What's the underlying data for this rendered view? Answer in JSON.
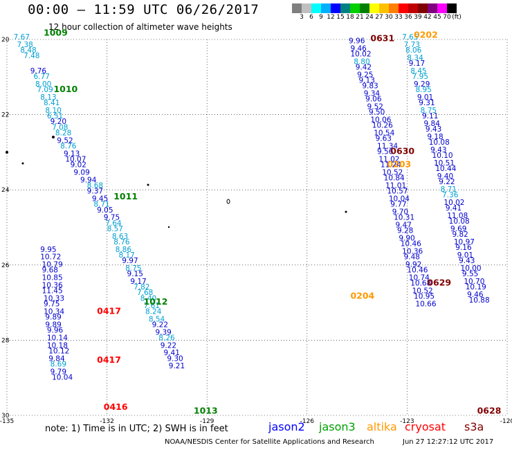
{
  "header": {
    "title": "00:00 – 11:59 UTC 06/26/2017",
    "subtitle": "12 hour collection of altimeter wave heights"
  },
  "colorbar": {
    "colors": [
      "#7f7f7f",
      "#c0c0c0",
      "#00ffff",
      "#00b0ff",
      "#0000ff",
      "#008080",
      "#00d000",
      "#008000",
      "#ffff00",
      "#ffc000",
      "#ff8000",
      "#ff0000",
      "#c00000",
      "#800000",
      "#800080",
      "#ff00ff",
      "#000000"
    ],
    "labels": [
      "3",
      "6",
      "9",
      "12",
      "15",
      "18",
      "21",
      "24",
      "27",
      "30",
      "33",
      "36",
      "39",
      "42",
      "45",
      "70",
      "(ft)"
    ]
  },
  "axes": {
    "lon_ticks": [
      "-135",
      "-132",
      "-129",
      "-126",
      "-123",
      "-120"
    ],
    "lat_ticks": [
      "20",
      "22",
      "24",
      "26",
      "28",
      "30"
    ],
    "lon_range": [
      -135,
      -120
    ],
    "lat_range": [
      20,
      30
    ]
  },
  "tracks": [
    {
      "label": "1009",
      "satellite": "jason3",
      "lon": -133.9,
      "lat": 19.9,
      "label_color": "#008000"
    },
    {
      "label": "1010",
      "satellite": "jason3",
      "lon": -133.6,
      "lat": 21.4,
      "label_color": "#008000"
    },
    {
      "label": "1011",
      "satellite": "jason3",
      "lon": -131.8,
      "lat": 24.25,
      "label_color": "#008000"
    },
    {
      "label": "1012",
      "satellite": "jason3",
      "lon": -130.9,
      "lat": 27.05,
      "label_color": "#008000"
    },
    {
      "label": "1013",
      "satellite": "jason3",
      "lon": -129.4,
      "lat": 29.95,
      "label_color": "#008000"
    },
    {
      "label": "0417",
      "satellite": "cryosat",
      "lon": -132.3,
      "lat": 27.3,
      "label_color": "#ff0000"
    },
    {
      "label": "0417",
      "satellite": "cryosat",
      "lon": -132.3,
      "lat": 28.6,
      "label_color": "#ff0000"
    },
    {
      "label": "0416",
      "satellite": "cryosat",
      "lon": -132.1,
      "lat": 29.85,
      "label_color": "#ff0000"
    },
    {
      "label": "0631",
      "satellite": "s3a",
      "lon": -124.1,
      "lat": 20.05,
      "label_color": "#800000"
    },
    {
      "label": "0202",
      "satellite": "altika",
      "lon": -122.8,
      "lat": 19.95,
      "label_color": "#ff9900"
    },
    {
      "label": "0630",
      "satellite": "s3a",
      "lon": -123.5,
      "lat": 23.05,
      "label_color": "#800000"
    },
    {
      "label": "0203",
      "satellite": "altika",
      "lon": -123.6,
      "lat": 23.4,
      "label_color": "#ff9900"
    },
    {
      "label": "0629",
      "satellite": "s3a",
      "lon": -122.4,
      "lat": 26.55,
      "label_color": "#800000"
    },
    {
      "label": "0204",
      "satellite": "altika",
      "lon": -124.7,
      "lat": 26.9,
      "label_color": "#ff9900"
    },
    {
      "label": "0628",
      "satellite": "s3a",
      "lon": -120.9,
      "lat": 29.95,
      "label_color": "#800000"
    }
  ],
  "points": [
    {
      "v": "7.67",
      "lon": -134.8,
      "lat": 20.0,
      "s": "jason3"
    },
    {
      "v": "7.38",
      "lon": -134.7,
      "lat": 20.2,
      "s": "jason3"
    },
    {
      "v": "8.48",
      "lon": -134.6,
      "lat": 20.35,
      "s": "jason3"
    },
    {
      "v": "7.48",
      "lon": -134.5,
      "lat": 20.5,
      "s": "jason3"
    },
    {
      "v": "9.76",
      "lon": -134.3,
      "lat": 20.9,
      "s": "jason2"
    },
    {
      "v": "6.77",
      "lon": -134.2,
      "lat": 21.05,
      "s": "jason3"
    },
    {
      "v": "8.00",
      "lon": -134.15,
      "lat": 21.25,
      "s": "jason3"
    },
    {
      "v": "7.09",
      "lon": -134.1,
      "lat": 21.4,
      "s": "jason3"
    },
    {
      "v": "8.13",
      "lon": -134.0,
      "lat": 21.6,
      "s": "jason3"
    },
    {
      "v": "8.41",
      "lon": -133.9,
      "lat": 21.75,
      "s": "jason3"
    },
    {
      "v": "8.10",
      "lon": -133.85,
      "lat": 21.95,
      "s": "jason3"
    },
    {
      "v": "6.51",
      "lon": -133.8,
      "lat": 22.1,
      "s": "jason3"
    },
    {
      "v": "9.20",
      "lon": -133.7,
      "lat": 22.25,
      "s": "jason2"
    },
    {
      "v": "7.08",
      "lon": -133.65,
      "lat": 22.4,
      "s": "jason3"
    },
    {
      "v": "8.28",
      "lon": -133.55,
      "lat": 22.55,
      "s": "jason3"
    },
    {
      "v": "9.52",
      "lon": -133.5,
      "lat": 22.75,
      "s": "jason2"
    },
    {
      "v": "8.76",
      "lon": -133.4,
      "lat": 22.9,
      "s": "jason3"
    },
    {
      "v": "9.13",
      "lon": -133.3,
      "lat": 23.1,
      "s": "jason2"
    },
    {
      "v": "10.07",
      "lon": -133.25,
      "lat": 23.25,
      "s": "jason2"
    },
    {
      "v": "9.02",
      "lon": -133.1,
      "lat": 23.4,
      "s": "jason2"
    },
    {
      "v": "9.09",
      "lon": -133.0,
      "lat": 23.6,
      "s": "jason2"
    },
    {
      "v": "9.94",
      "lon": -132.8,
      "lat": 23.8,
      "s": "jason2"
    },
    {
      "v": "8.68",
      "lon": -132.6,
      "lat": 23.95,
      "s": "jason3"
    },
    {
      "v": "9.37",
      "lon": -132.6,
      "lat": 24.1,
      "s": "jason2"
    },
    {
      "v": "9.45",
      "lon": -132.45,
      "lat": 24.3,
      "s": "jason2"
    },
    {
      "v": "8.71",
      "lon": -132.4,
      "lat": 24.45,
      "s": "jason3"
    },
    {
      "v": "9.05",
      "lon": -132.3,
      "lat": 24.6,
      "s": "jason2"
    },
    {
      "v": "9.75",
      "lon": -132.1,
      "lat": 24.8,
      "s": "jason2"
    },
    {
      "v": "7.64",
      "lon": -132.05,
      "lat": 24.95,
      "s": "jason3"
    },
    {
      "v": "8.57",
      "lon": -132.0,
      "lat": 25.1,
      "s": "jason3"
    },
    {
      "v": "8.63",
      "lon": -131.85,
      "lat": 25.3,
      "s": "jason3"
    },
    {
      "v": "8.76",
      "lon": -131.8,
      "lat": 25.45,
      "s": "jason3"
    },
    {
      "v": "8.86",
      "lon": -131.75,
      "lat": 25.65,
      "s": "jason3"
    },
    {
      "v": "8.17",
      "lon": -131.65,
      "lat": 25.8,
      "s": "jason3"
    },
    {
      "v": "9.97",
      "lon": -131.55,
      "lat": 25.95,
      "s": "jason2"
    },
    {
      "v": "8.75",
      "lon": -131.45,
      "lat": 26.15,
      "s": "jason3"
    },
    {
      "v": "9.15",
      "lon": -131.4,
      "lat": 26.3,
      "s": "jason2"
    },
    {
      "v": "9.17",
      "lon": -131.3,
      "lat": 26.5,
      "s": "jason2"
    },
    {
      "v": "7.82",
      "lon": -131.2,
      "lat": 26.65,
      "s": "jason3"
    },
    {
      "v": "7.68",
      "lon": -131.1,
      "lat": 26.8,
      "s": "jason3"
    },
    {
      "v": "8.40",
      "lon": -131.0,
      "lat": 26.95,
      "s": "jason3"
    },
    {
      "v": "7.61",
      "lon": -130.9,
      "lat": 27.15,
      "s": "jason3"
    },
    {
      "v": "8.24",
      "lon": -130.85,
      "lat": 27.3,
      "s": "jason3"
    },
    {
      "v": "8.54",
      "lon": -130.75,
      "lat": 27.5,
      "s": "jason3"
    },
    {
      "v": "9.22",
      "lon": -130.65,
      "lat": 27.65,
      "s": "jason2"
    },
    {
      "v": "9.39",
      "lon": -130.55,
      "lat": 27.85,
      "s": "jason2"
    },
    {
      "v": "8.26",
      "lon": -130.45,
      "lat": 28.0,
      "s": "jason3"
    },
    {
      "v": "9.22",
      "lon": -130.4,
      "lat": 28.2,
      "s": "jason2"
    },
    {
      "v": "9.41",
      "lon": -130.3,
      "lat": 28.4,
      "s": "jason2"
    },
    {
      "v": "9.30",
      "lon": -130.2,
      "lat": 28.55,
      "s": "jason2"
    },
    {
      "v": "9.21",
      "lon": -130.15,
      "lat": 28.75,
      "s": "jason2"
    },
    {
      "v": "9.95",
      "lon": -134.0,
      "lat": 25.65,
      "s": "jason2"
    },
    {
      "v": "10.72",
      "lon": -134.0,
      "lat": 25.85,
      "s": "jason2"
    },
    {
      "v": "10.79",
      "lon": -133.95,
      "lat": 26.05,
      "s": "jason2"
    },
    {
      "v": "9.68",
      "lon": -133.95,
      "lat": 26.2,
      "s": "jason2"
    },
    {
      "v": "10.85",
      "lon": -133.95,
      "lat": 26.4,
      "s": "jason2"
    },
    {
      "v": "10.36",
      "lon": -133.95,
      "lat": 26.6,
      "s": "jason2"
    },
    {
      "v": "11.45",
      "lon": -133.95,
      "lat": 26.75,
      "s": "jason2"
    },
    {
      "v": "10.33",
      "lon": -133.9,
      "lat": 26.95,
      "s": "jason2"
    },
    {
      "v": "9.75",
      "lon": -133.9,
      "lat": 27.1,
      "s": "jason2"
    },
    {
      "v": "10.34",
      "lon": -133.9,
      "lat": 27.3,
      "s": "jason2"
    },
    {
      "v": "9.89",
      "lon": -133.85,
      "lat": 27.45,
      "s": "jason2"
    },
    {
      "v": "9.89",
      "lon": -133.85,
      "lat": 27.65,
      "s": "jason2"
    },
    {
      "v": "9.96",
      "lon": -133.8,
      "lat": 27.8,
      "s": "jason2"
    },
    {
      "v": "10.14",
      "lon": -133.8,
      "lat": 28.0,
      "s": "jason2"
    },
    {
      "v": "10.18",
      "lon": -133.8,
      "lat": 28.2,
      "s": "jason2"
    },
    {
      "v": "10.12",
      "lon": -133.75,
      "lat": 28.35,
      "s": "jason2"
    },
    {
      "v": "9.84",
      "lon": -133.75,
      "lat": 28.55,
      "s": "jason2"
    },
    {
      "v": "8.69",
      "lon": -133.7,
      "lat": 28.7,
      "s": "jason3"
    },
    {
      "v": "9.79",
      "lon": -133.7,
      "lat": 28.9,
      "s": "jason2"
    },
    {
      "v": "10.04",
      "lon": -133.65,
      "lat": 29.05,
      "s": "jason2"
    },
    {
      "v": "9.96",
      "lon": -124.75,
      "lat": 20.1,
      "s": "jason2"
    },
    {
      "v": "9.46",
      "lon": -124.7,
      "lat": 20.3,
      "s": "jason2"
    },
    {
      "v": "10.02",
      "lon": -124.7,
      "lat": 20.45,
      "s": "jason2"
    },
    {
      "v": "8.80",
      "lon": -124.6,
      "lat": 20.65,
      "s": "jason3"
    },
    {
      "v": "9.42",
      "lon": -124.55,
      "lat": 20.8,
      "s": "jason2"
    },
    {
      "v": "9.25",
      "lon": -124.5,
      "lat": 21.0,
      "s": "jason2"
    },
    {
      "v": "9.13",
      "lon": -124.45,
      "lat": 21.15,
      "s": "jason2"
    },
    {
      "v": "9.83",
      "lon": -124.35,
      "lat": 21.3,
      "s": "jason2"
    },
    {
      "v": "9.34",
      "lon": -124.3,
      "lat": 21.5,
      "s": "jason2"
    },
    {
      "v": "9.06",
      "lon": -124.25,
      "lat": 21.65,
      "s": "jason2"
    },
    {
      "v": "9.52",
      "lon": -124.2,
      "lat": 21.85,
      "s": "jason2"
    },
    {
      "v": "9.50",
      "lon": -124.15,
      "lat": 22.0,
      "s": "jason2"
    },
    {
      "v": "10.06",
      "lon": -124.1,
      "lat": 22.2,
      "s": "jason2"
    },
    {
      "v": "10.26",
      "lon": -124.05,
      "lat": 22.35,
      "s": "jason2"
    },
    {
      "v": "10.54",
      "lon": -124.0,
      "lat": 22.55,
      "s": "jason2"
    },
    {
      "v": "9.63",
      "lon": -123.95,
      "lat": 22.7,
      "s": "jason2"
    },
    {
      "v": "11.34",
      "lon": -123.9,
      "lat": 22.9,
      "s": "jason2"
    },
    {
      "v": "9.56",
      "lon": -123.9,
      "lat": 23.05,
      "s": "jason2"
    },
    {
      "v": "11.02",
      "lon": -123.85,
      "lat": 23.25,
      "s": "jason2"
    },
    {
      "v": "11.24",
      "lon": -123.8,
      "lat": 23.4,
      "s": "jason2"
    },
    {
      "v": "10.52",
      "lon": -123.75,
      "lat": 23.6,
      "s": "jason2"
    },
    {
      "v": "10.84",
      "lon": -123.7,
      "lat": 23.75,
      "s": "jason2"
    },
    {
      "v": "11.01",
      "lon": -123.65,
      "lat": 23.95,
      "s": "jason2"
    },
    {
      "v": "10.57",
      "lon": -123.6,
      "lat": 24.1,
      "s": "jason2"
    },
    {
      "v": "10.04",
      "lon": -123.55,
      "lat": 24.3,
      "s": "jason2"
    },
    {
      "v": "9.77",
      "lon": -123.5,
      "lat": 24.45,
      "s": "jason2"
    },
    {
      "v": "9.70",
      "lon": -123.45,
      "lat": 24.65,
      "s": "jason2"
    },
    {
      "v": "10.31",
      "lon": -123.4,
      "lat": 24.8,
      "s": "jason2"
    },
    {
      "v": "9.47",
      "lon": -123.35,
      "lat": 25.0,
      "s": "jason2"
    },
    {
      "v": "9.28",
      "lon": -123.3,
      "lat": 25.15,
      "s": "jason2"
    },
    {
      "v": "9.90",
      "lon": -123.25,
      "lat": 25.35,
      "s": "jason2"
    },
    {
      "v": "10.46",
      "lon": -123.2,
      "lat": 25.5,
      "s": "jason2"
    },
    {
      "v": "10.36",
      "lon": -123.15,
      "lat": 25.7,
      "s": "jason2"
    },
    {
      "v": "9.48",
      "lon": -123.1,
      "lat": 25.85,
      "s": "jason2"
    },
    {
      "v": "9.92",
      "lon": -123.05,
      "lat": 26.05,
      "s": "jason2"
    },
    {
      "v": "10.46",
      "lon": -123.0,
      "lat": 26.2,
      "s": "jason2"
    },
    {
      "v": "10.74",
      "lon": -122.95,
      "lat": 26.4,
      "s": "jason2"
    },
    {
      "v": "10.68",
      "lon": -122.9,
      "lat": 26.55,
      "s": "jason2"
    },
    {
      "v": "10.52",
      "lon": -122.85,
      "lat": 26.75,
      "s": "jason2"
    },
    {
      "v": "10.95",
      "lon": -122.8,
      "lat": 26.9,
      "s": "jason2"
    },
    {
      "v": "10.66",
      "lon": -122.75,
      "lat": 27.1,
      "s": "jason2"
    },
    {
      "v": "7.65",
      "lon": -123.15,
      "lat": 20.0,
      "s": "jason3"
    },
    {
      "v": "7.73",
      "lon": -123.1,
      "lat": 20.2,
      "s": "jason3"
    },
    {
      "v": "8.06",
      "lon": -123.05,
      "lat": 20.35,
      "s": "jason3"
    },
    {
      "v": "8.34",
      "lon": -123.0,
      "lat": 20.55,
      "s": "jason3"
    },
    {
      "v": "9.17",
      "lon": -122.95,
      "lat": 20.7,
      "s": "jason2"
    },
    {
      "v": "8.45",
      "lon": -122.9,
      "lat": 20.9,
      "s": "jason3"
    },
    {
      "v": "7.95",
      "lon": -122.85,
      "lat": 21.05,
      "s": "jason3"
    },
    {
      "v": "9.29",
      "lon": -122.8,
      "lat": 21.25,
      "s": "jason2"
    },
    {
      "v": "8.95",
      "lon": -122.75,
      "lat": 21.4,
      "s": "jason3"
    },
    {
      "v": "9.01",
      "lon": -122.7,
      "lat": 21.6,
      "s": "jason2"
    },
    {
      "v": "9.31",
      "lon": -122.65,
      "lat": 21.75,
      "s": "jason2"
    },
    {
      "v": "8.75",
      "lon": -122.6,
      "lat": 21.95,
      "s": "jason3"
    },
    {
      "v": "9.11",
      "lon": -122.55,
      "lat": 22.1,
      "s": "jason2"
    },
    {
      "v": "9.84",
      "lon": -122.5,
      "lat": 22.3,
      "s": "jason2"
    },
    {
      "v": "9.43",
      "lon": -122.45,
      "lat": 22.45,
      "s": "jason2"
    },
    {
      "v": "9.18",
      "lon": -122.4,
      "lat": 22.65,
      "s": "jason2"
    },
    {
      "v": "10.08",
      "lon": -122.35,
      "lat": 22.8,
      "s": "jason2"
    },
    {
      "v": "9.43",
      "lon": -122.3,
      "lat": 23.0,
      "s": "jason2"
    },
    {
      "v": "10.10",
      "lon": -122.25,
      "lat": 23.15,
      "s": "jason2"
    },
    {
      "v": "10.51",
      "lon": -122.2,
      "lat": 23.35,
      "s": "jason2"
    },
    {
      "v": "10.44",
      "lon": -122.15,
      "lat": 23.5,
      "s": "jason2"
    },
    {
      "v": "9.40",
      "lon": -122.1,
      "lat": 23.7,
      "s": "jason2"
    },
    {
      "v": "9.22",
      "lon": -122.05,
      "lat": 23.85,
      "s": "jason2"
    },
    {
      "v": "8.71",
      "lon": -122.0,
      "lat": 24.05,
      "s": "jason3"
    },
    {
      "v": "7.36",
      "lon": -121.95,
      "lat": 24.2,
      "s": "jason3"
    },
    {
      "v": "10.02",
      "lon": -121.9,
      "lat": 24.4,
      "s": "jason2"
    },
    {
      "v": "9.41",
      "lon": -121.85,
      "lat": 24.55,
      "s": "jason2"
    },
    {
      "v": "11.08",
      "lon": -121.8,
      "lat": 24.75,
      "s": "jason2"
    },
    {
      "v": "10.08",
      "lon": -121.75,
      "lat": 24.9,
      "s": "jason2"
    },
    {
      "v": "9.69",
      "lon": -121.7,
      "lat": 25.1,
      "s": "jason2"
    },
    {
      "v": "9.82",
      "lon": -121.65,
      "lat": 25.25,
      "s": "jason2"
    },
    {
      "v": "10.97",
      "lon": -121.6,
      "lat": 25.45,
      "s": "jason2"
    },
    {
      "v": "9.16",
      "lon": -121.55,
      "lat": 25.6,
      "s": "jason2"
    },
    {
      "v": "9.01",
      "lon": -121.5,
      "lat": 25.8,
      "s": "jason2"
    },
    {
      "v": "9.43",
      "lon": -121.45,
      "lat": 25.95,
      "s": "jason2"
    },
    {
      "v": "10.00",
      "lon": -121.4,
      "lat": 26.15,
      "s": "jason2"
    },
    {
      "v": "9.55",
      "lon": -121.35,
      "lat": 26.3,
      "s": "jason2"
    },
    {
      "v": "10.70",
      "lon": -121.3,
      "lat": 26.5,
      "s": "jason2"
    },
    {
      "v": "10.19",
      "lon": -121.25,
      "lat": 26.65,
      "s": "jason2"
    },
    {
      "v": "9.46",
      "lon": -121.2,
      "lat": 26.85,
      "s": "jason2"
    },
    {
      "v": "10.88",
      "lon": -121.15,
      "lat": 27.0,
      "s": "jason2"
    }
  ],
  "sat_colors": {
    "jason2": "#0000cc",
    "jason3": "#00a0d0",
    "altika": "#ff9900",
    "cryosat": "#ff0000",
    "s3a": "#800000"
  },
  "footer": {
    "note": "note: 1) Time is in UTC; 2) SWH is in feet",
    "credit": "NOAA/NESDIS Center for Satellite Applications and Research",
    "timestamp": "Jun 27 12:27:12 UTC 2017",
    "legend": [
      {
        "name": "jason2",
        "color": "#0000ff"
      },
      {
        "name": "jason3",
        "color": "#00a000"
      },
      {
        "name": "altika",
        "color": "#ff9900"
      },
      {
        "name": "cryosat",
        "color": "#ff0000"
      },
      {
        "name": "s3a",
        "color": "#800000"
      }
    ]
  }
}
